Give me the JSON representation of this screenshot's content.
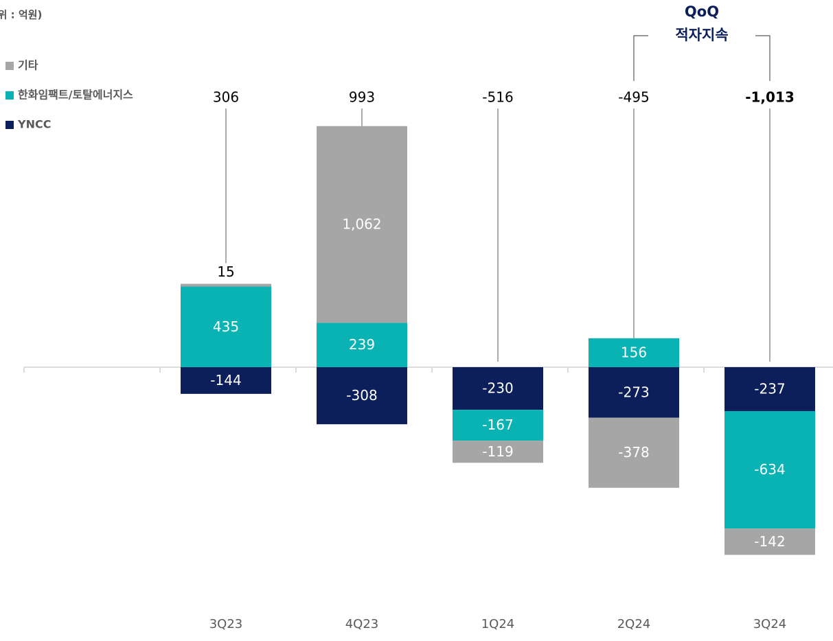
{
  "chart_data": {
    "type": "stacked_bar",
    "unit_label": "(단위 : 억원)",
    "categories": [
      "3Q23",
      "4Q23",
      "1Q24",
      "2Q24",
      "3Q24"
    ],
    "series": [
      {
        "name": "YNCC",
        "color": "#0c1f5b",
        "values": [
          -144,
          -308,
          -230,
          -273,
          -237
        ]
      },
      {
        "name": "한화임팩트/토탈에너지스",
        "color": "#0ab3b3",
        "values": [
          435,
          239,
          -167,
          156,
          -634
        ]
      },
      {
        "name": "기타",
        "color": "#a6a6a6",
        "values": [
          15,
          1062,
          -119,
          -378,
          -142
        ],
        "value_labels": [
          "15",
          "1,062",
          "-119",
          "-378",
          "-142"
        ]
      }
    ],
    "totals": [
      306,
      993,
      -516,
      -495,
      -1013
    ],
    "total_labels": [
      "306",
      "993",
      "-516",
      "-495",
      "-1,013"
    ],
    "bold_totals": [
      false,
      false,
      false,
      false,
      true
    ],
    "annotation": {
      "lines": [
        "QoQ",
        "적자지속"
      ],
      "color": "#0c1f5b"
    }
  }
}
